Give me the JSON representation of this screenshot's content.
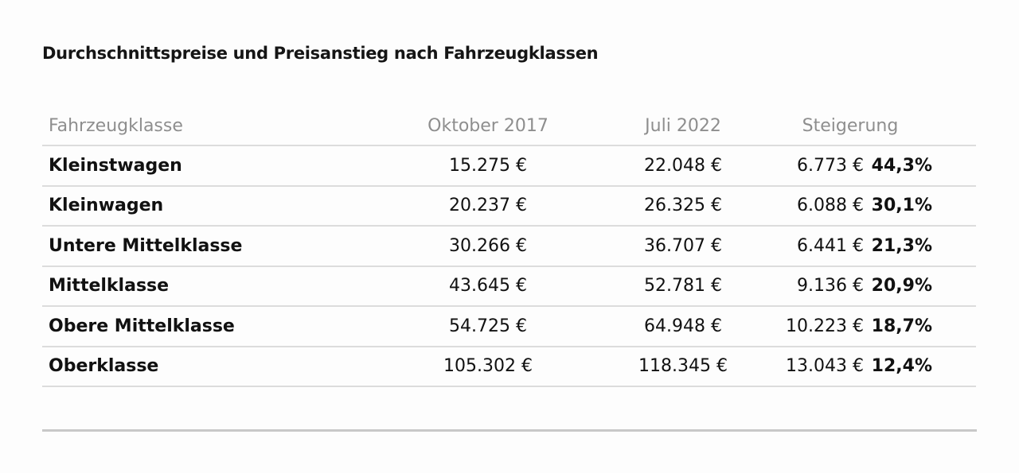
{
  "title": "Durchschnittspreise und Preisanstieg nach Fahrzeugklassen",
  "chart_data": {
    "type": "table",
    "title": "Durchschnittspreise und Preisanstieg nach Fahrzeugklassen",
    "columns": [
      "Fahrzeugklasse",
      "Oktober 2017",
      "Juli 2022",
      "Steigerung"
    ],
    "rows": [
      {
        "class": "Kleinstwagen",
        "oct2017": "15.275 €",
        "jul2022": "22.048 €",
        "increase": "6.773 €",
        "percent": "44,3%"
      },
      {
        "class": "Kleinwagen",
        "oct2017": "20.237 €",
        "jul2022": "26.325 €",
        "increase": "6.088 €",
        "percent": "30,1%"
      },
      {
        "class": "Untere Mittelklasse",
        "oct2017": "30.266 €",
        "jul2022": "36.707 €",
        "increase": "6.441 €",
        "percent": "21,3%"
      },
      {
        "class": "Mittelklasse",
        "oct2017": "43.645 €",
        "jul2022": "52.781 €",
        "increase": "9.136 €",
        "percent": "20,9%"
      },
      {
        "class": "Obere Mittelklasse",
        "oct2017": "54.725 €",
        "jul2022": "64.948 €",
        "increase": "10.223 €",
        "percent": "18,7%"
      },
      {
        "class": "Oberklasse",
        "oct2017": "105.302 €",
        "jul2022": "118.345 €",
        "increase": "13.043 €",
        "percent": "12,4%"
      }
    ]
  }
}
